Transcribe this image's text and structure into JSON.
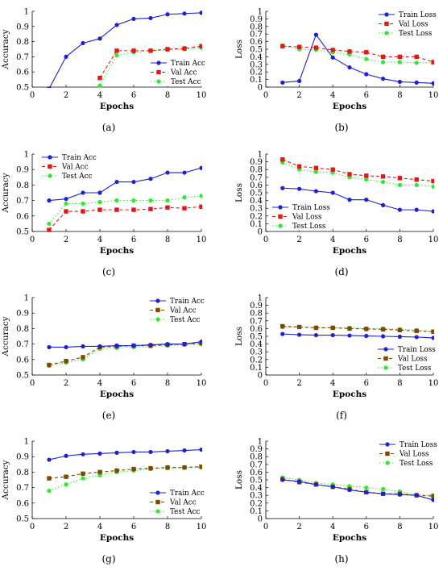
{
  "figure": {
    "panels": [
      "(a)",
      "(b)",
      "(c)",
      "(d)",
      "(e)",
      "(f)",
      "(g)",
      "(h)"
    ]
  },
  "colors": {
    "train": "#1f1fd6",
    "val": "#e01818",
    "val_olive": "#7a4a00",
    "test": "#2eea2e",
    "axis": "#000000"
  },
  "chart_data": [
    {
      "id": "a",
      "panel_label": "(a)",
      "type": "line",
      "xlabel": "Epochs",
      "ylabel": "Accuracy",
      "xlim": [
        0,
        10
      ],
      "ylim": [
        0.5,
        1
      ],
      "xticks": [
        0,
        2,
        4,
        6,
        8,
        10
      ],
      "yticks": [
        0.5,
        0.6,
        0.7,
        0.8,
        0.9,
        1
      ],
      "ytick_labels": [
        "0.5",
        "0.6",
        "0.7",
        "0.8",
        "0.9",
        "1"
      ],
      "legend_position": "bottom-right",
      "series": [
        {
          "name": "Train Acc",
          "style": "train",
          "x": [
            1,
            2,
            3,
            4,
            5,
            6,
            7,
            8,
            9,
            10
          ],
          "values": [
            0.49,
            0.7,
            0.79,
            0.82,
            0.91,
            0.95,
            0.955,
            0.98,
            0.985,
            0.99
          ]
        },
        {
          "name": "Val Acc",
          "style": "val",
          "x": [
            4,
            5,
            6,
            7,
            8,
            9,
            10
          ],
          "values": [
            0.56,
            0.74,
            0.74,
            0.74,
            0.75,
            0.755,
            0.77
          ]
        },
        {
          "name": "Test Acc",
          "style": "test",
          "x": [
            4,
            5,
            6,
            7,
            8,
            9,
            10
          ],
          "values": [
            0.51,
            0.71,
            0.73,
            0.74,
            0.745,
            0.75,
            0.76
          ]
        }
      ]
    },
    {
      "id": "b",
      "panel_label": "(b)",
      "type": "line",
      "xlabel": "Epochs",
      "ylabel": "Loss",
      "xlim": [
        0,
        10
      ],
      "ylim": [
        0,
        1
      ],
      "xticks": [
        0,
        2,
        4,
        6,
        8,
        10
      ],
      "yticks": [
        0,
        0.1,
        0.2,
        0.3,
        0.4,
        0.5,
        0.6,
        0.7,
        0.8,
        0.9,
        1
      ],
      "ytick_labels": [
        "0",
        "0.1",
        "0.2",
        "0.3",
        "0.4",
        "0.5",
        "0.6",
        "0.7",
        "0.8",
        "0.9",
        "1"
      ],
      "legend_position": "top-right",
      "series": [
        {
          "name": "Train Loss",
          "style": "train",
          "x": [
            1,
            2,
            3,
            4,
            5,
            6,
            7,
            8,
            9,
            10
          ],
          "values": [
            0.06,
            0.08,
            0.69,
            0.39,
            0.26,
            0.17,
            0.11,
            0.07,
            0.06,
            0.05
          ]
        },
        {
          "name": "Val Loss",
          "style": "val",
          "x": [
            1,
            2,
            3,
            4,
            5,
            6,
            7,
            8,
            9,
            10
          ],
          "values": [
            0.54,
            0.53,
            0.52,
            0.49,
            0.47,
            0.46,
            0.4,
            0.4,
            0.4,
            0.33
          ]
        },
        {
          "name": "Test Loss",
          "style": "test",
          "x": [
            1,
            2,
            3,
            4,
            5,
            6,
            7,
            8,
            9,
            10
          ],
          "values": [
            0.55,
            0.5,
            0.49,
            0.46,
            0.43,
            0.37,
            0.33,
            0.33,
            0.32,
            0.32
          ]
        }
      ]
    },
    {
      "id": "c",
      "panel_label": "(c)",
      "type": "line",
      "xlabel": "Epochs",
      "ylabel": "Accuracy",
      "xlim": [
        0,
        10
      ],
      "ylim": [
        0.5,
        1
      ],
      "xticks": [
        0,
        2,
        4,
        6,
        8,
        10
      ],
      "yticks": [
        0.5,
        0.6,
        0.7,
        0.8,
        0.9,
        1
      ],
      "ytick_labels": [
        "0.5",
        "0.6",
        "0.7",
        "0.8",
        "0.9",
        "1"
      ],
      "legend_position": "top-left",
      "series": [
        {
          "name": "Train Acc",
          "style": "train",
          "x": [
            1,
            2,
            3,
            4,
            5,
            6,
            7,
            8,
            9,
            10
          ],
          "values": [
            0.7,
            0.71,
            0.75,
            0.75,
            0.82,
            0.82,
            0.84,
            0.88,
            0.88,
            0.91
          ]
        },
        {
          "name": "Val Acc",
          "style": "val",
          "x": [
            1,
            2,
            3,
            4,
            5,
            6,
            7,
            8,
            9,
            10
          ],
          "values": [
            0.51,
            0.63,
            0.63,
            0.64,
            0.64,
            0.64,
            0.645,
            0.655,
            0.65,
            0.66
          ]
        },
        {
          "name": "Test Acc",
          "style": "test",
          "x": [
            1,
            2,
            3,
            4,
            5,
            6,
            7,
            8,
            9,
            10
          ],
          "values": [
            0.55,
            0.68,
            0.68,
            0.69,
            0.7,
            0.7,
            0.7,
            0.7,
            0.72,
            0.73
          ]
        }
      ]
    },
    {
      "id": "d",
      "panel_label": "(d)",
      "type": "line",
      "xlabel": "Epochs",
      "ylabel": "Loss",
      "xlim": [
        0,
        10
      ],
      "ylim": [
        0,
        1
      ],
      "xticks": [
        0,
        2,
        4,
        6,
        8,
        10
      ],
      "yticks": [
        0,
        0.1,
        0.2,
        0.3,
        0.4,
        0.5,
        0.6,
        0.7,
        0.8,
        0.9,
        1
      ],
      "ytick_labels": [
        "0",
        "0.1",
        "0.2",
        "0.3",
        "0.4",
        "0.5",
        "0.6",
        "0.7",
        "0.8",
        "0.9",
        "1"
      ],
      "legend_position": "bottom-left",
      "series": [
        {
          "name": "Train Loss",
          "style": "train",
          "x": [
            1,
            2,
            3,
            4,
            5,
            6,
            7,
            8,
            9,
            10
          ],
          "values": [
            0.56,
            0.55,
            0.52,
            0.5,
            0.41,
            0.41,
            0.34,
            0.28,
            0.28,
            0.26
          ]
        },
        {
          "name": "Val Loss",
          "style": "val",
          "x": [
            1,
            2,
            3,
            4,
            5,
            6,
            7,
            8,
            9,
            10
          ],
          "values": [
            0.93,
            0.84,
            0.82,
            0.8,
            0.74,
            0.72,
            0.71,
            0.69,
            0.67,
            0.65
          ]
        },
        {
          "name": "Test Loss",
          "style": "test",
          "x": [
            1,
            2,
            3,
            4,
            5,
            6,
            7,
            8,
            9,
            10
          ],
          "values": [
            0.89,
            0.8,
            0.77,
            0.76,
            0.7,
            0.67,
            0.64,
            0.6,
            0.6,
            0.58
          ]
        }
      ]
    },
    {
      "id": "e",
      "panel_label": "(e)",
      "type": "line",
      "xlabel": "Epochs",
      "ylabel": "Accuracy",
      "xlim": [
        0,
        10
      ],
      "ylim": [
        0.5,
        1
      ],
      "xticks": [
        0,
        2,
        4,
        6,
        8,
        10
      ],
      "yticks": [
        0.5,
        0.6,
        0.7,
        0.8,
        0.9,
        1
      ],
      "ytick_labels": [
        "0.5",
        "0.6",
        "0.7",
        "0.8",
        "0.9",
        "1"
      ],
      "legend_position": "top-right",
      "series": [
        {
          "name": "Train Acc",
          "style": "train",
          "x": [
            1,
            2,
            3,
            4,
            5,
            6,
            7,
            8,
            9,
            10
          ],
          "values": [
            0.68,
            0.68,
            0.685,
            0.685,
            0.69,
            0.69,
            0.695,
            0.7,
            0.7,
            0.715
          ]
        },
        {
          "name": "Val Acc",
          "style": "val_olive",
          "x": [
            1,
            2,
            3,
            4,
            5,
            6,
            7,
            8,
            9,
            10
          ],
          "values": [
            0.565,
            0.59,
            0.615,
            0.68,
            0.685,
            0.69,
            0.69,
            0.695,
            0.7,
            0.705
          ]
        },
        {
          "name": "Test Acc",
          "style": "test",
          "x": [
            1,
            2,
            3,
            4,
            5,
            6,
            7,
            8,
            9,
            10
          ],
          "values": [
            0.56,
            0.58,
            0.6,
            0.67,
            0.675,
            0.68,
            0.685,
            0.69,
            0.695,
            0.7
          ]
        }
      ]
    },
    {
      "id": "f",
      "panel_label": "(f)",
      "type": "line",
      "xlabel": "Epochs",
      "ylabel": "Loss",
      "xlim": [
        0,
        10
      ],
      "ylim": [
        0,
        1
      ],
      "xticks": [
        0,
        2,
        4,
        6,
        8,
        10
      ],
      "yticks": [
        0,
        0.1,
        0.2,
        0.3,
        0.4,
        0.5,
        0.6,
        0.7,
        0.8,
        0.9,
        1
      ],
      "ytick_labels": [
        "0",
        "0.1",
        "0.2",
        "0.3",
        "0.4",
        "0.5",
        "0.6",
        "0.7",
        "0.8",
        "0.9",
        "1"
      ],
      "legend_position": "bottom-right",
      "series": [
        {
          "name": "Train Loss",
          "style": "train",
          "x": [
            1,
            2,
            3,
            4,
            5,
            6,
            7,
            8,
            9,
            10
          ],
          "values": [
            0.53,
            0.52,
            0.515,
            0.515,
            0.51,
            0.505,
            0.5,
            0.495,
            0.49,
            0.48
          ]
        },
        {
          "name": "Val Loss",
          "style": "val_olive",
          "x": [
            1,
            2,
            3,
            4,
            5,
            6,
            7,
            8,
            9,
            10
          ],
          "values": [
            0.63,
            0.62,
            0.61,
            0.61,
            0.6,
            0.595,
            0.59,
            0.58,
            0.57,
            0.56
          ]
        },
        {
          "name": "Test Loss",
          "style": "test",
          "x": [
            1,
            2,
            3,
            4,
            5,
            6,
            7,
            8,
            9,
            10
          ],
          "values": [
            0.62,
            0.62,
            0.61,
            0.61,
            0.61,
            0.6,
            0.6,
            0.59,
            0.58,
            0.56
          ]
        }
      ]
    },
    {
      "id": "g",
      "panel_label": "(g)",
      "type": "line",
      "xlabel": "Epochs",
      "ylabel": "Accuracy",
      "xlim": [
        0,
        10
      ],
      "ylim": [
        0.5,
        1
      ],
      "xticks": [
        0,
        2,
        4,
        6,
        8,
        10
      ],
      "yticks": [
        0.5,
        0.6,
        0.7,
        0.8,
        0.9,
        1
      ],
      "ytick_labels": [
        "0.5",
        "0.6",
        "0.7",
        "0.8",
        "0.9",
        "1"
      ],
      "legend_position": "bottom-right",
      "series": [
        {
          "name": "Train Acc",
          "style": "train",
          "x": [
            1,
            2,
            3,
            4,
            5,
            6,
            7,
            8,
            9,
            10
          ],
          "values": [
            0.88,
            0.905,
            0.915,
            0.92,
            0.925,
            0.93,
            0.93,
            0.935,
            0.94,
            0.945
          ]
        },
        {
          "name": "Val Acc",
          "style": "val_olive",
          "x": [
            1,
            2,
            3,
            4,
            5,
            6,
            7,
            8,
            9,
            10
          ],
          "values": [
            0.76,
            0.77,
            0.79,
            0.8,
            0.81,
            0.82,
            0.825,
            0.83,
            0.83,
            0.835
          ]
        },
        {
          "name": "Test Acc",
          "style": "test",
          "x": [
            1,
            2,
            3,
            4,
            5,
            6,
            7,
            8,
            9,
            10
          ],
          "values": [
            0.68,
            0.72,
            0.76,
            0.78,
            0.8,
            0.81,
            0.82,
            0.825,
            0.83,
            0.83
          ]
        }
      ]
    },
    {
      "id": "h",
      "panel_label": "(h)",
      "type": "line",
      "xlabel": "Epochs",
      "ylabel": "Loss",
      "xlim": [
        0,
        10
      ],
      "ylim": [
        0,
        1
      ],
      "xticks": [
        0,
        2,
        4,
        6,
        8,
        10
      ],
      "yticks": [
        0,
        0.1,
        0.2,
        0.3,
        0.4,
        0.5,
        0.6,
        0.7,
        0.8,
        0.9,
        1
      ],
      "ytick_labels": [
        "0",
        "0.1",
        "0.2",
        "0.3",
        "0.4",
        "0.5",
        "0.6",
        "0.7",
        "0.8",
        "0.9",
        "1"
      ],
      "legend_position": "top-right",
      "series": [
        {
          "name": "Train Loss",
          "style": "train",
          "x": [
            1,
            2,
            3,
            4,
            5,
            6,
            7,
            8,
            9,
            10
          ],
          "values": [
            0.5,
            0.48,
            0.44,
            0.41,
            0.37,
            0.34,
            0.32,
            0.31,
            0.3,
            0.24
          ]
        },
        {
          "name": "Val Loss",
          "style": "val_olive",
          "x": [
            1,
            2,
            3,
            4,
            5,
            6,
            7,
            8,
            9,
            10
          ],
          "values": [
            0.51,
            0.47,
            0.44,
            0.41,
            0.38,
            0.34,
            0.32,
            0.32,
            0.3,
            0.29
          ]
        },
        {
          "name": "Test Loss",
          "style": "test",
          "x": [
            1,
            2,
            3,
            4,
            5,
            6,
            7,
            8,
            9,
            10
          ],
          "values": [
            0.53,
            0.5,
            0.46,
            0.44,
            0.42,
            0.4,
            0.38,
            0.35,
            0.31,
            0.3
          ]
        }
      ]
    }
  ]
}
